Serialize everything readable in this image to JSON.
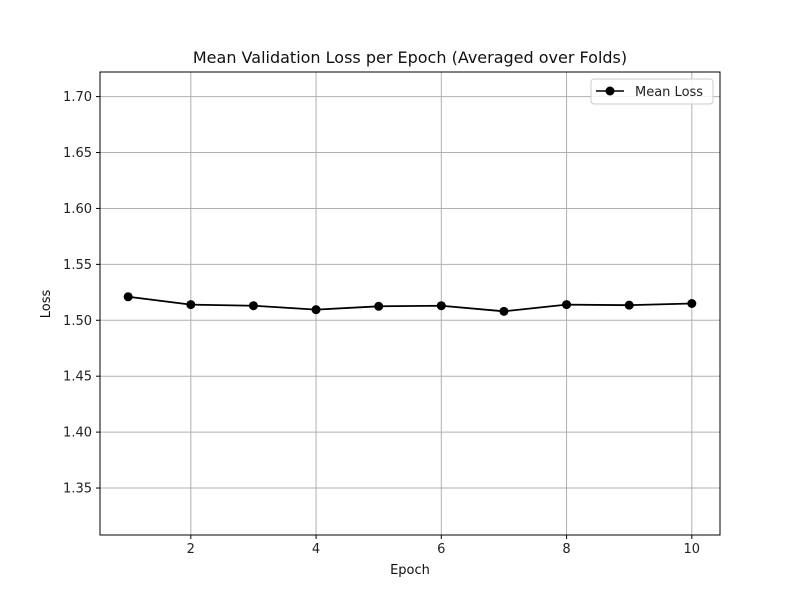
{
  "chart_data": {
    "type": "line",
    "title": "Mean Validation Loss per Epoch (Averaged over Folds)",
    "xlabel": "Epoch",
    "ylabel": "Loss",
    "x": [
      1,
      2,
      3,
      4,
      5,
      6,
      7,
      8,
      9,
      10
    ],
    "series": [
      {
        "name": "Mean Loss",
        "values": [
          1.521,
          1.514,
          1.513,
          1.5095,
          1.5125,
          1.513,
          1.508,
          1.514,
          1.5135,
          1.515
        ],
        "color": "#000000",
        "marker": "circle"
      }
    ],
    "xlim": [
      0.55,
      10.45
    ],
    "ylim": [
      1.308,
      1.722
    ],
    "xticks": [
      2,
      4,
      6,
      8,
      10
    ],
    "yticks": [
      1.35,
      1.4,
      1.45,
      1.5,
      1.55,
      1.6,
      1.65,
      1.7
    ],
    "ytick_labels": [
      "1.35",
      "1.40",
      "1.45",
      "1.50",
      "1.55",
      "1.60",
      "1.65",
      "1.70"
    ],
    "grid": true,
    "grid_color": "#b0b0b0",
    "legend_position": "top-right"
  }
}
